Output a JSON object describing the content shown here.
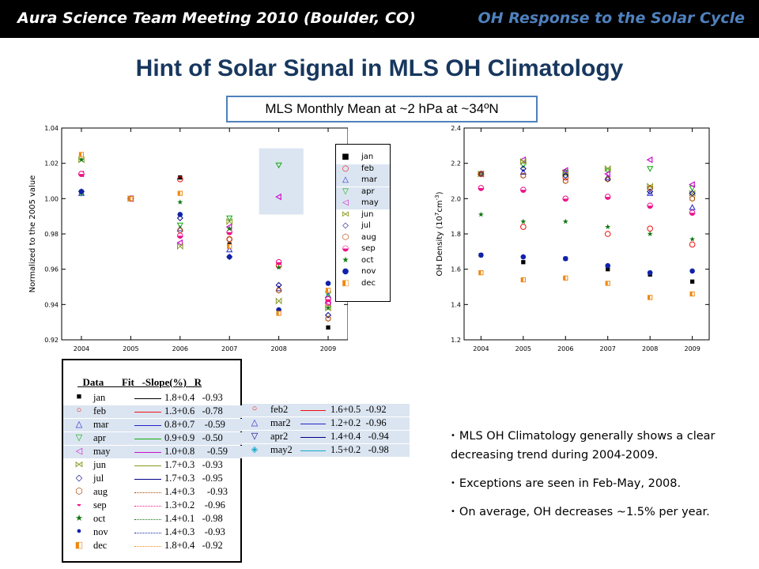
{
  "header": {
    "left": "Aura Science Team Meeting 2010 (Boulder, CO)",
    "right": "OH Response to the Solar Cycle"
  },
  "title": "Hint of Solar Signal in MLS OH Climatology",
  "subtitle": "MLS Monthly Mean at ~2 hPa at ~34ºN",
  "colors": {
    "accent": "#4f81bd",
    "title": "#17375e",
    "highlight": "#dbe5f1"
  },
  "chart_data": [
    {
      "type": "scatter",
      "ylabel": "Normalized to the 2005 value",
      "xlabel": "",
      "xlim": [
        2003.6,
        2009.4
      ],
      "ylim": [
        0.92,
        1.04
      ],
      "x_ticks": [
        "2004",
        "2005",
        "2006",
        "2007",
        "2008",
        "2009"
      ],
      "y_ticks": [
        "0.92",
        "0.94",
        "0.96",
        "0.98",
        "1.00",
        "1.02",
        "1.04"
      ],
      "x": [
        2004,
        2005,
        2006,
        2007,
        2008,
        2009
      ],
      "series": [
        {
          "name": "jan",
          "color": "#000000",
          "marker": "square-fill",
          "values": [
            1.004,
            1.0,
            1.012,
            0.974,
            0.936,
            0.927
          ]
        },
        {
          "name": "feb",
          "color": "#ee1111",
          "marker": "circle",
          "values": [
            1.014,
            1.0,
            1.011,
            0.977,
            0.962,
            0.941
          ]
        },
        {
          "name": "mar",
          "color": "#2222cc",
          "marker": "triangle-up",
          "values": [
            1.003,
            1.0,
            0.983,
            0.971,
            0.949,
            0.945
          ]
        },
        {
          "name": "apr",
          "color": "#11aa11",
          "marker": "triangle-down",
          "values": [
            1.003,
            1.0,
            0.985,
            0.989,
            1.019,
            0.946
          ]
        },
        {
          "name": "may",
          "color": "#cc11cc",
          "marker": "triangle-left",
          "values": [
            1.014,
            1.0,
            0.975,
            0.984,
            1.001,
            0.941
          ]
        },
        {
          "name": "jun",
          "color": "#889922",
          "marker": "bowtie",
          "values": [
            1.022,
            1.0,
            0.973,
            0.987,
            0.942,
            0.938
          ]
        },
        {
          "name": "jul",
          "color": "#000088",
          "marker": "diamond",
          "values": [
            1.004,
            1.0,
            0.989,
            0.967,
            0.951,
            0.934
          ]
        },
        {
          "name": "aug",
          "color": "#aa4400",
          "marker": "hexagon",
          "values": [
            1.014,
            1.0,
            0.982,
            0.977,
            0.948,
            0.932
          ]
        },
        {
          "name": "sep",
          "color": "#ee1188",
          "marker": "circle-half",
          "values": [
            1.014,
            1.0,
            0.979,
            0.981,
            0.964,
            0.943
          ]
        },
        {
          "name": "oct",
          "color": "#117711",
          "marker": "star",
          "values": [
            1.022,
            1.0,
            0.998,
            0.983,
            0.961,
            0.938
          ]
        },
        {
          "name": "nov",
          "color": "#1122aa",
          "marker": "circle-fill",
          "values": [
            1.004,
            1.0,
            0.991,
            0.967,
            0.937,
            0.952
          ]
        },
        {
          "name": "dec",
          "color": "#ee8811",
          "marker": "square-half",
          "values": [
            1.025,
            1.0,
            1.003,
            0.973,
            0.935,
            0.948
          ]
        }
      ],
      "legend": "right"
    },
    {
      "type": "scatter",
      "ylabel": "OH Density (10",
      "ylabel_sup": "7",
      "ylabel_mid": "cm",
      "ylabel_sup2": "-3",
      "ylabel_end": ")",
      "xlim": [
        2003.6,
        2009.4
      ],
      "ylim": [
        1.2,
        2.4
      ],
      "x_ticks": [
        "2004",
        "2005",
        "2006",
        "2007",
        "2008",
        "2009"
      ],
      "y_ticks": [
        "1.2",
        "1.4",
        "1.6",
        "1.8",
        "2.0",
        "2.2",
        "2.4"
      ],
      "x": [
        2004,
        2005,
        2006,
        2007,
        2008,
        2009
      ],
      "series": [
        {
          "name": "jan",
          "values": [
            1.68,
            1.64,
            1.66,
            1.6,
            1.57,
            1.53
          ]
        },
        {
          "name": "feb",
          "values": [
            2.14,
            1.84,
            2.12,
            1.8,
            1.83,
            1.74
          ]
        },
        {
          "name": "mar",
          "values": [
            2.14,
            2.15,
            2.15,
            2.12,
            2.03,
            1.95
          ]
        },
        {
          "name": "apr",
          "values": [
            2.14,
            2.19,
            2.15,
            2.16,
            2.17,
            2.06
          ]
        },
        {
          "name": "may",
          "values": [
            2.14,
            2.22,
            2.16,
            2.14,
            2.22,
            2.08
          ]
        },
        {
          "name": "jun",
          "values": [
            2.14,
            2.21,
            2.14,
            2.17,
            2.07,
            2.03
          ]
        },
        {
          "name": "jul",
          "values": [
            2.14,
            2.17,
            2.13,
            2.11,
            2.04,
            2.03
          ]
        },
        {
          "name": "aug",
          "values": [
            2.14,
            2.13,
            2.1,
            2.11,
            2.06,
            2.0
          ]
        },
        {
          "name": "sep",
          "values": [
            2.06,
            2.05,
            2.0,
            2.01,
            1.96,
            1.92
          ]
        },
        {
          "name": "oct",
          "values": [
            1.91,
            1.87,
            1.87,
            1.84,
            1.8,
            1.77
          ]
        },
        {
          "name": "nov",
          "values": [
            1.68,
            1.67,
            1.66,
            1.62,
            1.58,
            1.59
          ]
        },
        {
          "name": "dec",
          "values": [
            1.58,
            1.54,
            1.55,
            1.52,
            1.44,
            1.46
          ]
        }
      ]
    }
  ],
  "fit_table": {
    "header": "  Data       Fit   -Slope(%)   R",
    "rows": [
      {
        "name": "jan",
        "fit": "1.8+0.4   -0.93",
        "color": "#000000",
        "sym": "■",
        "dash": "solid"
      },
      {
        "name": "feb",
        "fit": "1.3+0.6   -0.78",
        "color": "#ee1111",
        "sym": "○",
        "dash": "solid"
      },
      {
        "name": "mar",
        "fit": "0.8+0.7    -0.59",
        "color": "#2222cc",
        "sym": "△",
        "dash": "solid"
      },
      {
        "name": "apr",
        "fit": "0.9+0.9   -0.50",
        "color": "#11aa11",
        "sym": "▽",
        "dash": "solid"
      },
      {
        "name": "may",
        "fit": "1.0+0.8     -0.59",
        "color": "#cc11cc",
        "sym": "◁",
        "dash": "solid"
      },
      {
        "name": "jun",
        "fit": "1.7+0.3   -0.93",
        "color": "#889922",
        "sym": "⋈",
        "dash": "solid"
      },
      {
        "name": "jul",
        "fit": "1.7+0.3   -0.95",
        "color": "#000088",
        "sym": "◇",
        "dash": "solid"
      },
      {
        "name": "aug",
        "fit": "1.4+0.3     -0.93",
        "color": "#aa4400",
        "sym": "⬡",
        "dash": "dotted"
      },
      {
        "name": "sep",
        "fit": "1.3+0.2    -0.96",
        "color": "#ee1188",
        "sym": "◒",
        "dash": "dotted"
      },
      {
        "name": "oct",
        "fit": "1.4+0.1   -0.98",
        "color": "#117711",
        "sym": "★",
        "dash": "dotted"
      },
      {
        "name": "nov",
        "fit": "1.4+0.3    -0.93",
        "color": "#1122aa",
        "sym": "●",
        "dash": "dotted"
      },
      {
        "name": "dec",
        "fit": "1.8+0.4   -0.92",
        "color": "#ee8811",
        "sym": "◧",
        "dash": "dotted"
      }
    ],
    "extra_rows": [
      {
        "name": "feb2",
        "fit": "1.6+0.5  -0.92",
        "color": "#ee1111",
        "sym": "○"
      },
      {
        "name": "mar2",
        "fit": "1.2+0.2  -0.96",
        "color": "#2222cc",
        "sym": "△"
      },
      {
        "name": "apr2",
        "fit": "1.4+0.4   -0.94",
        "color": "#000088",
        "sym": "▽"
      },
      {
        "name": "may2",
        "fit": "1.5+0.2   -0.98",
        "color": "#11aacc",
        "sym": "◈"
      }
    ]
  },
  "bullets": [
    "MLS OH Climatology generally shows a clear decreasing trend during 2004-2009.",
    "Exceptions are seen in Feb-May, 2008.",
    "On average, OH decreases ~1.5% per year."
  ]
}
